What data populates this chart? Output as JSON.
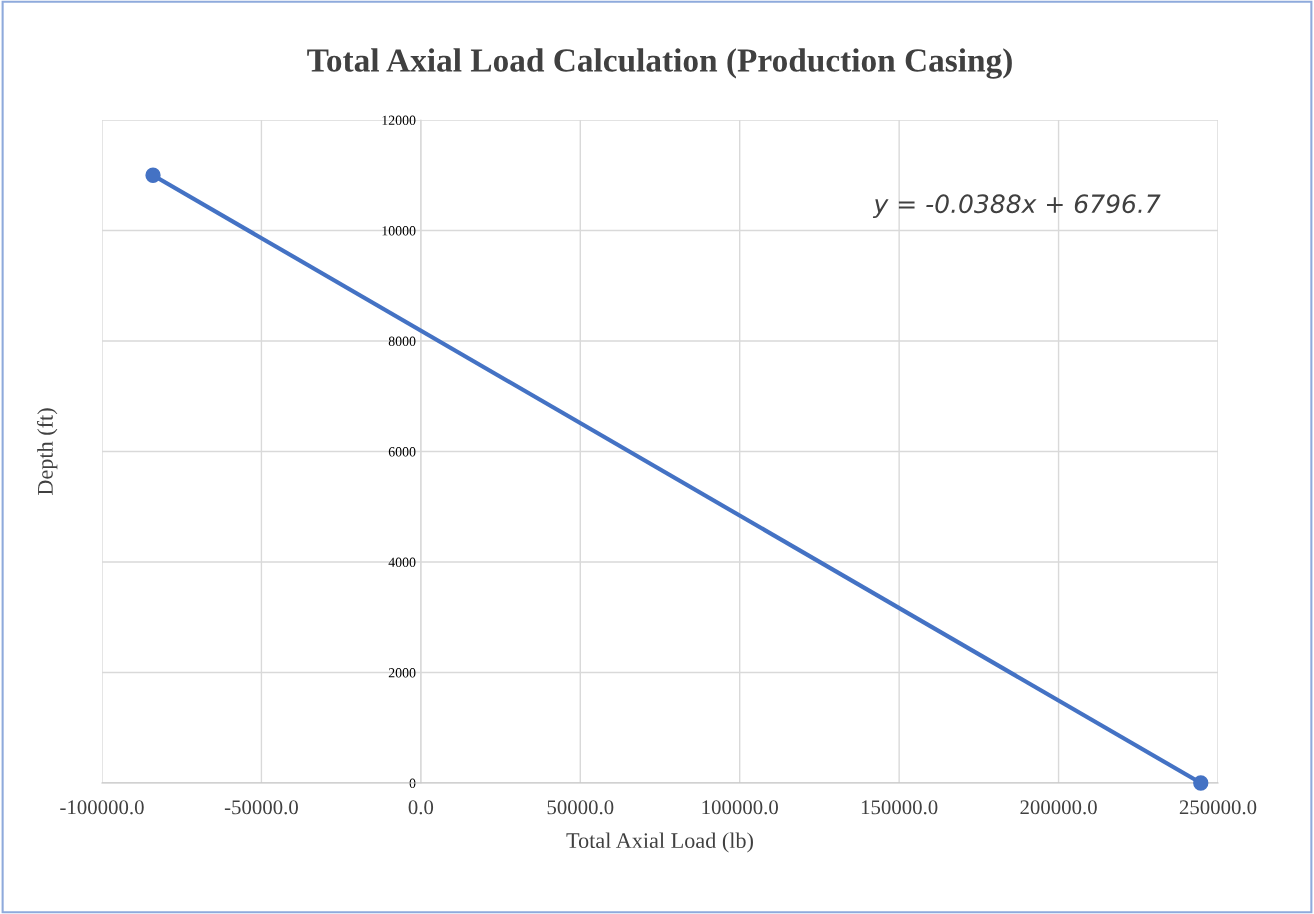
{
  "chart_data": {
    "type": "line",
    "title": "Total Axial Load Calculation (Production Casing)",
    "xlabel": "Total Axial Load (lb)",
    "ylabel": "Depth (ft)",
    "annotations": [
      "y = -0.0388x + 6796.7"
    ],
    "series": [
      {
        "color": "#4472c4",
        "x": [
          -84000,
          244600
        ],
        "values": [
          11000,
          0
        ]
      }
    ],
    "xlim": [
      -100000,
      250000
    ],
    "xticks": [
      {
        "value": -100000,
        "label": "-100000.0"
      },
      {
        "value": -50000,
        "label": "-50000.0"
      },
      {
        "value": 0,
        "label": "0.0"
      },
      {
        "value": 50000,
        "label": "50000.0"
      },
      {
        "value": 100000,
        "label": "100000.0"
      },
      {
        "value": 150000,
        "label": "150000.0"
      },
      {
        "value": 200000,
        "label": "200000.0"
      },
      {
        "value": 250000,
        "label": "250000.0"
      }
    ],
    "ylim": [
      0,
      12000
    ],
    "yticks": [
      0,
      2000,
      4000,
      6000,
      8000,
      10000,
      12000
    ],
    "grid": true,
    "marker": "circle",
    "line_style": "solid"
  }
}
